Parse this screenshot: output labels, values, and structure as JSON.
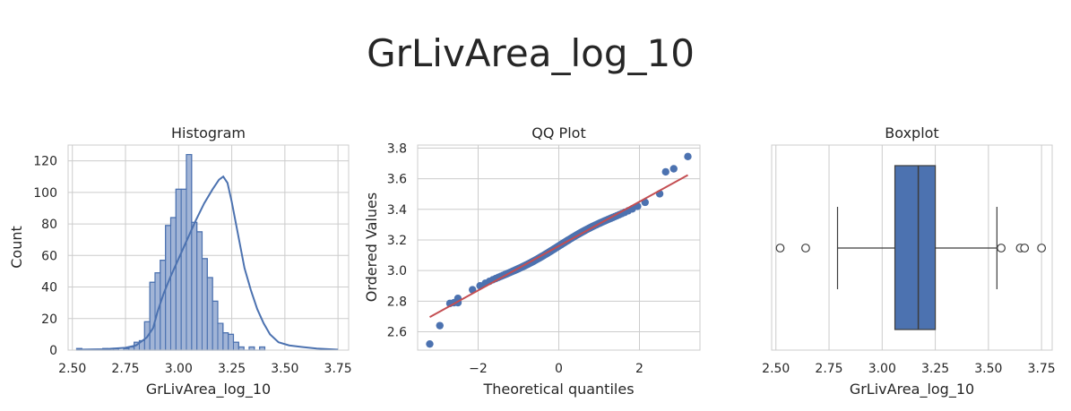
{
  "figure": {
    "title": "GrLivArea_log_10"
  },
  "colors": {
    "primary": "#4c72b0",
    "fill": "#a1b4d6",
    "fit_line": "#c44e52",
    "grid": "#cccccc"
  },
  "chart_data": [
    {
      "type": "histogram",
      "title": "Histogram",
      "xlabel": "GrLivArea_log_10",
      "ylabel": "Count",
      "xlim": [
        2.48,
        3.8
      ],
      "ylim": [
        0,
        130
      ],
      "xticks": [
        "2.50",
        "2.75",
        "3.00",
        "3.25",
        "3.50",
        "3.75"
      ],
      "yticks": [
        "0",
        "20",
        "40",
        "60",
        "80",
        "100",
        "120"
      ],
      "bin_width": 0.0246,
      "bins_start": 2.52,
      "counts": [
        1,
        0,
        0,
        0,
        0,
        1,
        0,
        1,
        0,
        1,
        2,
        5,
        6,
        18,
        43,
        49,
        57,
        79,
        84,
        102,
        102,
        124,
        81,
        75,
        58,
        46,
        31,
        17,
        11,
        10,
        5,
        2,
        0,
        2,
        0,
        2
      ],
      "kde": [
        [
          2.52,
          0.3
        ],
        [
          2.65,
          0.6
        ],
        [
          2.75,
          1.5
        ],
        [
          2.8,
          3
        ],
        [
          2.85,
          8
        ],
        [
          2.88,
          14
        ],
        [
          2.9,
          24
        ],
        [
          2.93,
          36
        ],
        [
          2.96,
          46
        ],
        [
          3.0,
          58
        ],
        [
          3.04,
          70
        ],
        [
          3.08,
          82
        ],
        [
          3.12,
          93
        ],
        [
          3.16,
          102
        ],
        [
          3.19,
          108
        ],
        [
          3.21,
          110
        ],
        [
          3.23,
          106
        ],
        [
          3.25,
          94
        ],
        [
          3.27,
          80
        ],
        [
          3.29,
          66
        ],
        [
          3.31,
          52
        ],
        [
          3.34,
          38
        ],
        [
          3.37,
          26
        ],
        [
          3.4,
          17
        ],
        [
          3.43,
          10
        ],
        [
          3.47,
          5
        ],
        [
          3.52,
          3
        ],
        [
          3.58,
          2
        ],
        [
          3.65,
          1
        ],
        [
          3.75,
          0.3
        ]
      ]
    },
    {
      "type": "scatter",
      "title": "QQ Plot",
      "xlabel": "Theoretical quantiles",
      "ylabel": "Ordered Values",
      "xlim": [
        -3.5,
        3.5
      ],
      "ylim": [
        2.48,
        3.82
      ],
      "xticks": [
        "−2",
        "0",
        "2"
      ],
      "yticks": [
        "2.6",
        "2.8",
        "3.0",
        "3.2",
        "3.4",
        "3.6",
        "3.8"
      ],
      "fit_line": {
        "intercept": 3.16,
        "slope": 0.145,
        "x_range": [
          -3.2,
          3.2
        ]
      },
      "outliers": [
        [
          -3.2,
          2.52
        ],
        [
          -2.95,
          2.64
        ],
        [
          -2.7,
          2.785
        ],
        [
          -2.6,
          2.79
        ],
        [
          -2.5,
          2.79
        ],
        [
          2.65,
          3.645
        ],
        [
          2.85,
          3.665
        ],
        [
          3.2,
          3.745
        ]
      ]
    },
    {
      "type": "box",
      "title": "Boxplot",
      "xlabel": "GrLivArea_log_10",
      "xlim": [
        2.48,
        3.8
      ],
      "xticks": [
        "2.50",
        "2.75",
        "3.00",
        "3.25",
        "3.50",
        "3.75"
      ],
      "q1": 3.06,
      "median": 3.17,
      "q3": 3.25,
      "whisker_low": 2.79,
      "whisker_high": 3.54,
      "fliers": [
        2.52,
        2.64,
        3.56,
        3.65,
        3.67,
        3.75
      ]
    }
  ]
}
